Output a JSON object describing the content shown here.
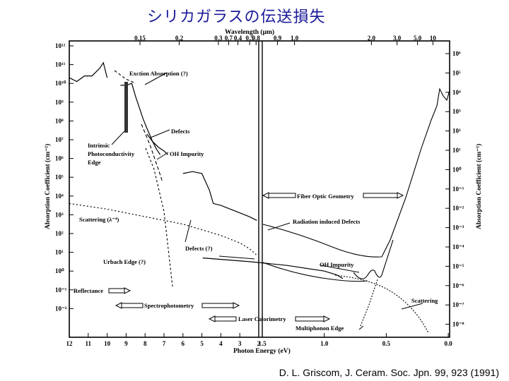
{
  "slide": {
    "title": "シリカガラスの伝送損失",
    "citation": "D. L. Griscom, J. Ceram. Soc. Jpn. 99, 923 (1991)"
  },
  "chart_data": {
    "type": "line",
    "x_axis_bottom": {
      "label": "Photon Energy (eV)",
      "segments": [
        {
          "ticks": [
            "12",
            "11",
            "10",
            "9",
            "8",
            "7",
            "6",
            "5",
            "4",
            "3",
            "2"
          ]
        },
        {
          "ticks": [
            "1.5",
            "1.0",
            "0.5",
            "0.0"
          ]
        }
      ]
    },
    "x_axis_top": {
      "label": "Wavelength (μm)",
      "ticks": [
        "0.15",
        "0.2",
        "0.3",
        "0.4",
        "0.5",
        "0.7",
        "0.8",
        "0.9",
        "1.0",
        "2.0",
        "3.0",
        "5.0",
        "10"
      ]
    },
    "y_axis_left": {
      "label": "Absorption Coefficient (cm⁻¹)",
      "ticks": [
        "10¹²",
        "10¹¹",
        "10¹⁰",
        "10⁹",
        "10⁸",
        "10⁷",
        "10⁶",
        "10⁵",
        "10⁴",
        "10³",
        "10²",
        "10¹",
        "10⁰",
        "10⁻¹",
        "10⁻²"
      ]
    },
    "y_axis_right": {
      "label": "Absorption Coefficient (cm⁻¹)",
      "ticks": [
        "10⁶",
        "10⁵",
        "10⁴",
        "10³",
        "10²",
        "10¹",
        "10⁰",
        "10⁻¹",
        "10⁻²",
        "10⁻³",
        "10⁻⁴",
        "10⁻⁵",
        "10⁻⁶",
        "10⁻⁷",
        "10⁻⁸"
      ]
    },
    "annotations": [
      "Exction Absorption (?)",
      "Defects",
      "Intrinsic",
      "Photoconductivity",
      "Edge",
      "OH Impurity",
      "Fiber Optic Geometry",
      "Scattering (λ⁻⁴)",
      "Radiation induced Defects",
      "Defects (?)",
      "Urbach Edge (?)",
      "OH Impurity",
      "Reflectance",
      "Scattering",
      "Spectrophotometry",
      "Laser Calorimetry",
      "Multiphonon Edge"
    ],
    "series": [
      {
        "x": [
          12.0,
          11.6,
          11.2,
          10.8,
          10.4,
          10.2,
          10.0
        ],
        "y": [
          10.3,
          10.1,
          10.4,
          10.4,
          10.8,
          11.1,
          10.3
        ]
      },
      {
        "x": [
          9.3,
          9.0,
          8.7,
          8.5,
          8.3,
          8.1,
          7.9,
          7.6,
          7.4,
          7.2
        ],
        "y": [
          9.9,
          9.9,
          10.0,
          9.3,
          8.7,
          8.1,
          7.6,
          6.9,
          6.5,
          6.2
        ]
      },
      {
        "x": [
          7.9,
          7.6,
          7.3,
          7.0,
          6.8
        ],
        "y": [
          7.3,
          6.9,
          6.6,
          6.4,
          6.2
        ]
      },
      {
        "x": [
          6.0,
          5.5,
          5.0,
          4.6,
          4.4,
          4.0,
          3.5,
          3.0,
          2.5,
          2.1
        ],
        "y": [
          5.2,
          5.3,
          5.2,
          4.3,
          3.6,
          3.5,
          3.3,
          3.1,
          2.9,
          2.7
        ]
      },
      {
        "x": [
          12.0,
          10.0,
          8.0,
          6.0,
          4.0,
          3.0,
          2.5,
          2.05
        ],
        "y": [
          3.6,
          3.3,
          2.9,
          2.5,
          1.9,
          1.5,
          1.2,
          0.8
        ]
      },
      {
        "x": [
          1.98,
          1.6,
          1.3,
          1.0,
          0.9,
          0.85
        ],
        "y": [
          0.7,
          0.5,
          0.3,
          0.0,
          -0.2,
          -0.4
        ]
      }
    ]
  }
}
